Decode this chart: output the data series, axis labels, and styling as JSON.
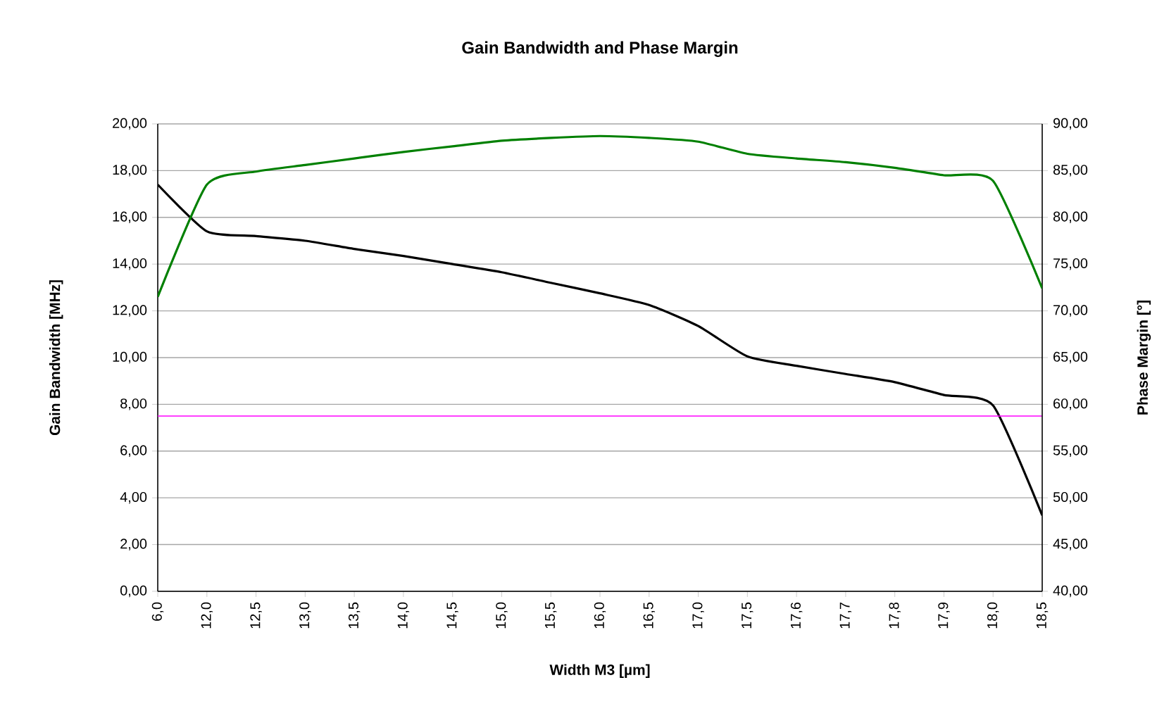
{
  "chart_data": {
    "type": "line",
    "title": "Gain Bandwidth and Phase Margin",
    "xlabel": "Width M3 [µm]",
    "ylabel": "Gain Bandwidth [MHz]",
    "y2label": "Phase Margin [°]",
    "categories": [
      "6,0",
      "12,0",
      "12,5",
      "13,0",
      "13,5",
      "14,0",
      "14,5",
      "15,0",
      "15,5",
      "16,0",
      "16,5",
      "17,0",
      "17,5",
      "17,6",
      "17,7",
      "17,8",
      "17,9",
      "18,0",
      "18,5"
    ],
    "series": [
      {
        "color": "#000000",
        "axis": "y",
        "values": [
          17.4,
          15.4,
          15.2,
          15.0,
          14.65,
          14.35,
          14.0,
          13.65,
          13.2,
          12.75,
          12.25,
          11.35,
          10.05,
          9.65,
          9.3,
          8.95,
          8.4,
          7.95,
          3.25
        ]
      },
      {
        "color": "#008000",
        "axis": "y2",
        "values": [
          71.5,
          83.5,
          84.9,
          85.6,
          86.3,
          87.0,
          87.6,
          88.2,
          88.5,
          88.7,
          88.5,
          88.1,
          86.8,
          86.3,
          85.9,
          85.3,
          84.5,
          83.9,
          72.4
        ]
      }
    ],
    "ylim": [
      0,
      20
    ],
    "yticks": [
      {
        "value": 0,
        "label": "0,00"
      },
      {
        "value": 2,
        "label": "2,00"
      },
      {
        "value": 4,
        "label": "4,00"
      },
      {
        "value": 6,
        "label": "6,00"
      },
      {
        "value": 8,
        "label": "8,00"
      },
      {
        "value": 10,
        "label": "10,00"
      },
      {
        "value": 12,
        "label": "12,00"
      },
      {
        "value": 14,
        "label": "14,00"
      },
      {
        "value": 16,
        "label": "16,00"
      },
      {
        "value": 18,
        "label": "18,00"
      },
      {
        "value": 20,
        "label": "20,00"
      }
    ],
    "y2lim": [
      40,
      90
    ],
    "y2ticks": [
      {
        "value": 40,
        "label": "40,00"
      },
      {
        "value": 45,
        "label": "45,00"
      },
      {
        "value": 50,
        "label": "50,00"
      },
      {
        "value": 55,
        "label": "55,00"
      },
      {
        "value": 60,
        "label": "60,00"
      },
      {
        "value": 65,
        "label": "65,00"
      },
      {
        "value": 70,
        "label": "70,00"
      },
      {
        "value": 75,
        "label": "75,00"
      },
      {
        "value": 80,
        "label": "80,00"
      },
      {
        "value": 85,
        "label": "85,00"
      },
      {
        "value": 90,
        "label": "90,00"
      }
    ],
    "ref_lines": [
      {
        "axis": "y",
        "value": 7.5,
        "color": "#ff00ff"
      }
    ],
    "grid": "y"
  }
}
